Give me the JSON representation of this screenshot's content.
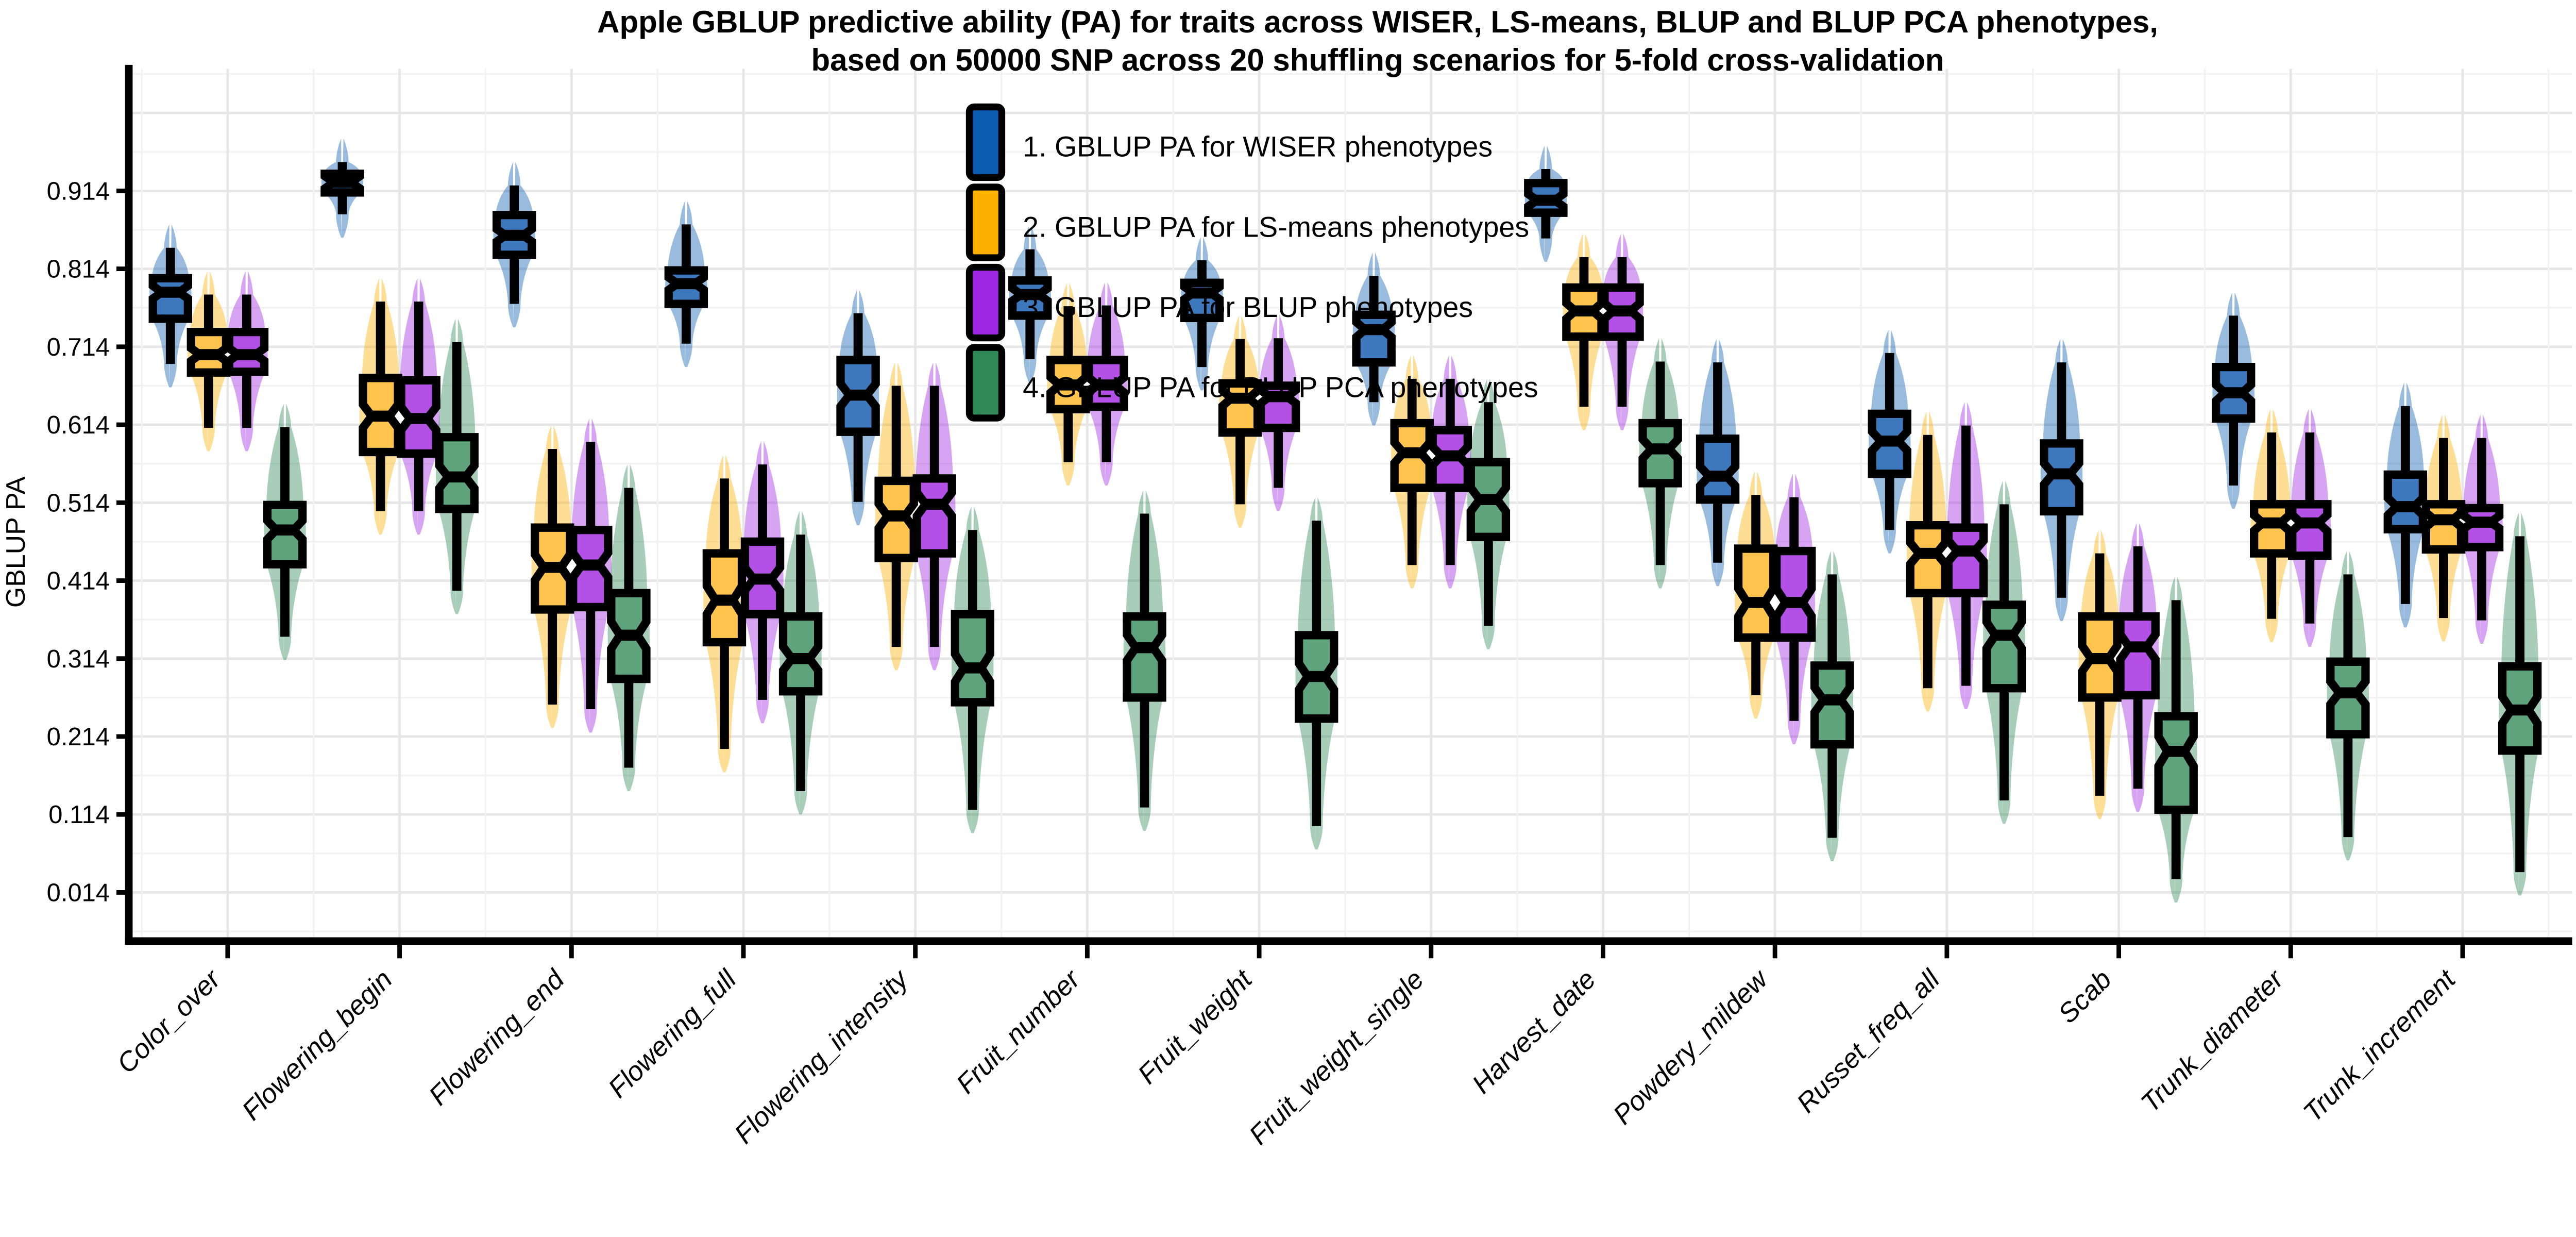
{
  "title": {
    "line1": "Apple GBLUP predictive ability (PA) for traits across WISER, LS-means, BLUP and BLUP PCA phenotypes,",
    "line2": "based on 50000 SNP across 20 shuffling scenarios for 5-fold cross-validation"
  },
  "y_axis": {
    "label": "GBLUP PA",
    "tick_labels": [
      "0.914",
      "0.814",
      "0.714",
      "0.614",
      "0.514",
      "0.414",
      "0.314",
      "0.214",
      "0.114",
      "0.014"
    ],
    "tick_values": [
      0.914,
      0.814,
      0.714,
      0.614,
      0.514,
      0.414,
      0.314,
      0.214,
      0.114,
      0.014
    ]
  },
  "legend": {
    "items": [
      {
        "label": "1. GBLUP PA for WISER phenotypes",
        "color": "#0A5CB0"
      },
      {
        "label": "2. GBLUP PA for LS-means phenotypes",
        "color": "#FCAF00"
      },
      {
        "label": "3. GBLUP PA for BLUP phenotypes",
        "color": "#9D27E2"
      },
      {
        "label": "4. GBLUP PA for BLUP PCA phenotypes",
        "color": "#2F8A58"
      }
    ]
  },
  "chart_data": {
    "type": "boxplot",
    "variant": "notched boxplots with violin overlays and white mean diamond per trait",
    "orientation": "vertical",
    "grid": "on",
    "legend_position": "inside-top-center-left",
    "ylabel": "GBLUP PA",
    "ylim": [
      -0.04,
      1.06
    ],
    "value_format": "[whisker_low, q1, median, q3, whisker_high]",
    "categories": [
      "Color_over",
      "Flowering_begin",
      "Flowering_end",
      "Flowering_full",
      "Flowering_intensity",
      "Fruit_number",
      "Fruit_weight",
      "Fruit_weight_single",
      "Harvest_date",
      "Powdery_mildew",
      "Russet_freq_all",
      "Scab",
      "Trunk_diameter",
      "Trunk_increment"
    ],
    "series": [
      {
        "name": "GBLUP PA for WISER phenotypes",
        "key_color": "#0A5CB0",
        "box_fill": "#3D78BC",
        "violin_fill": "#0A5CB0",
        "values": [
          [
            0.692,
            0.75,
            0.784,
            0.802,
            0.841
          ],
          [
            0.884,
            0.912,
            0.925,
            0.936,
            0.951
          ],
          [
            0.769,
            0.832,
            0.857,
            0.883,
            0.921
          ],
          [
            0.718,
            0.769,
            0.795,
            0.812,
            0.871
          ],
          [
            0.515,
            0.605,
            0.652,
            0.697,
            0.757
          ],
          [
            0.698,
            0.754,
            0.781,
            0.799,
            0.839
          ],
          [
            0.688,
            0.751,
            0.783,
            0.796,
            0.825
          ],
          [
            0.643,
            0.694,
            0.736,
            0.755,
            0.805
          ],
          [
            0.853,
            0.886,
            0.902,
            0.924,
            0.942
          ],
          [
            0.437,
            0.518,
            0.548,
            0.596,
            0.694
          ],
          [
            0.479,
            0.551,
            0.593,
            0.628,
            0.706
          ],
          [
            0.392,
            0.503,
            0.551,
            0.59,
            0.694
          ],
          [
            0.536,
            0.622,
            0.655,
            0.688,
            0.754
          ],
          [
            0.384,
            0.48,
            0.509,
            0.55,
            0.638
          ]
        ]
      },
      {
        "name": "GBLUP PA for LS-means phenotypes",
        "key_color": "#FCAF00",
        "box_fill": "#FFC44D",
        "violin_fill": "#FCAF00",
        "values": [
          [
            0.61,
            0.681,
            0.704,
            0.733,
            0.781
          ],
          [
            0.503,
            0.579,
            0.625,
            0.674,
            0.772
          ],
          [
            0.255,
            0.377,
            0.431,
            0.482,
            0.583
          ],
          [
            0.198,
            0.335,
            0.389,
            0.449,
            0.545
          ],
          [
            0.329,
            0.443,
            0.497,
            0.542,
            0.664
          ],
          [
            0.566,
            0.634,
            0.665,
            0.697,
            0.766
          ],
          [
            0.512,
            0.604,
            0.648,
            0.667,
            0.724
          ],
          [
            0.434,
            0.533,
            0.578,
            0.616,
            0.673
          ],
          [
            0.637,
            0.727,
            0.76,
            0.79,
            0.829
          ],
          [
            0.267,
            0.341,
            0.386,
            0.455,
            0.524
          ],
          [
            0.276,
            0.398,
            0.449,
            0.485,
            0.601
          ],
          [
            0.138,
            0.264,
            0.314,
            0.368,
            0.449
          ],
          [
            0.365,
            0.449,
            0.488,
            0.512,
            0.604
          ],
          [
            0.366,
            0.454,
            0.492,
            0.512,
            0.597
          ]
        ]
      },
      {
        "name": "GBLUP PA for BLUP phenotypes",
        "key_color": "#9D27E2",
        "box_fill": "#B351E6",
        "violin_fill": "#9D27E2",
        "values": [
          [
            0.61,
            0.682,
            0.704,
            0.733,
            0.781
          ],
          [
            0.503,
            0.577,
            0.622,
            0.671,
            0.772
          ],
          [
            0.249,
            0.38,
            0.434,
            0.479,
            0.592
          ],
          [
            0.261,
            0.371,
            0.416,
            0.464,
            0.563
          ],
          [
            0.329,
            0.449,
            0.512,
            0.545,
            0.664
          ],
          [
            0.566,
            0.637,
            0.665,
            0.697,
            0.767
          ],
          [
            0.533,
            0.61,
            0.65,
            0.664,
            0.725
          ],
          [
            0.434,
            0.533,
            0.574,
            0.607,
            0.673
          ],
          [
            0.637,
            0.727,
            0.76,
            0.79,
            0.829
          ],
          [
            0.234,
            0.341,
            0.386,
            0.452,
            0.521
          ],
          [
            0.279,
            0.398,
            0.452,
            0.482,
            0.613
          ],
          [
            0.147,
            0.267,
            0.329,
            0.368,
            0.458
          ],
          [
            0.359,
            0.446,
            0.488,
            0.512,
            0.604
          ],
          [
            0.363,
            0.457,
            0.489,
            0.507,
            0.597
          ]
        ]
      },
      {
        "name": "GBLUP PA for BLUP PCA phenotypes",
        "key_color": "#2F8A58",
        "box_fill": "#5FA37D",
        "violin_fill": "#2F8A58",
        "values": [
          [
            0.342,
            0.435,
            0.479,
            0.511,
            0.611
          ],
          [
            0.401,
            0.506,
            0.547,
            0.598,
            0.72
          ],
          [
            0.174,
            0.288,
            0.344,
            0.398,
            0.533
          ],
          [
            0.144,
            0.272,
            0.314,
            0.368,
            0.473
          ],
          [
            0.12,
            0.258,
            0.302,
            0.371,
            0.479
          ],
          [
            0.123,
            0.264,
            0.328,
            0.368,
            0.5
          ],
          [
            0.099,
            0.237,
            0.291,
            0.344,
            0.491
          ],
          [
            0.356,
            0.47,
            0.518,
            0.566,
            0.643
          ],
          [
            0.434,
            0.539,
            0.583,
            0.616,
            0.695
          ],
          [
            0.084,
            0.204,
            0.261,
            0.305,
            0.422
          ],
          [
            0.132,
            0.276,
            0.344,
            0.383,
            0.512
          ],
          [
            0.031,
            0.12,
            0.195,
            0.24,
            0.389
          ],
          [
            0.085,
            0.217,
            0.27,
            0.31,
            0.422
          ],
          [
            0.04,
            0.196,
            0.248,
            0.304,
            0.471
          ]
        ]
      }
    ]
  }
}
